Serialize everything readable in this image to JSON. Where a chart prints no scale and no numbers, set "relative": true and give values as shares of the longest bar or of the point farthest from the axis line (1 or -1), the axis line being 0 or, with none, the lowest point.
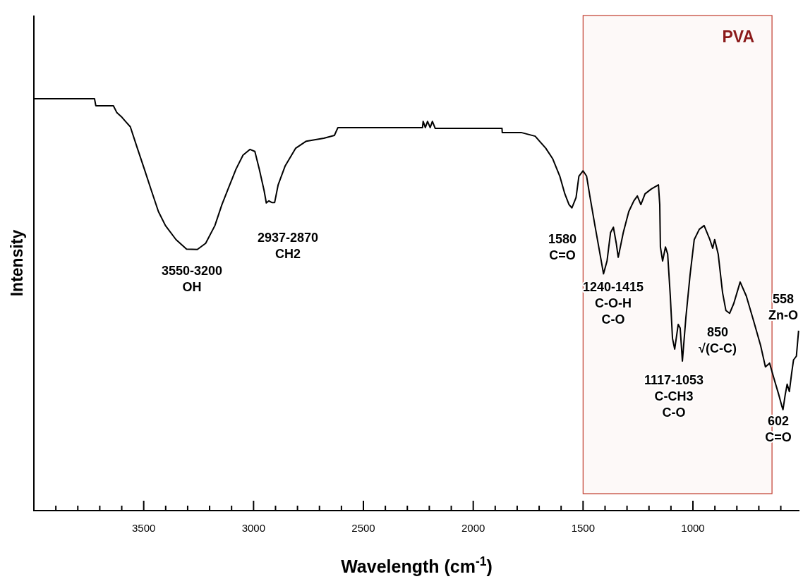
{
  "chart_data": {
    "type": "line",
    "xlabel": "Wavelength (cm$^{-1}$)",
    "ylabel": "Intensity",
    "relative": true,
    "xlim": [
      4000,
      515
    ],
    "xticks": [
      {
        "value": 3900,
        "label": null
      },
      {
        "value": 3800,
        "label": null
      },
      {
        "value": 3700,
        "label": null
      },
      {
        "value": 3600,
        "label": null
      },
      3500,
      {
        "value": 3400,
        "label": null
      },
      {
        "value": 3300,
        "label": null
      },
      {
        "value": 3200,
        "label": null
      },
      {
        "value": 3100,
        "label": null
      },
      3000,
      {
        "value": 2900,
        "label": null
      },
      {
        "value": 2800,
        "label": null
      },
      {
        "value": 2700,
        "label": null
      },
      {
        "value": 2600,
        "label": null
      },
      2500,
      {
        "value": 2400,
        "label": null
      },
      {
        "value": 2300,
        "label": null
      },
      {
        "value": 2200,
        "label": null
      },
      {
        "value": 2100,
        "label": null
      },
      2000,
      {
        "value": 1900,
        "label": null
      },
      {
        "value": 1800,
        "label": null
      },
      {
        "value": 1700,
        "label": null
      },
      {
        "value": 1600,
        "label": null
      },
      1500,
      {
        "value": 1400,
        "label": null
      },
      {
        "value": 1300,
        "label": null
      },
      {
        "value": 1200,
        "label": null
      },
      {
        "value": 1100,
        "label": null
      },
      1000,
      {
        "value": 900,
        "label": null
      },
      {
        "value": 800,
        "label": null
      },
      {
        "value": 700,
        "label": null
      },
      {
        "value": 600,
        "label": null
      }
    ],
    "grid": false,
    "marker": "none",
    "line_style": "solid",
    "series": [
      {
        "color": "#000000",
        "x": [
          4000,
          3724,
          3718,
          3638,
          3622,
          3599,
          3583,
          3561,
          3529,
          3497,
          3465,
          3433,
          3401,
          3353,
          3305,
          3256,
          3218,
          3176,
          3144,
          3112,
          3080,
          3048,
          3016,
          2994,
          2974,
          2952,
          2942,
          2930,
          2917,
          2904,
          2888,
          2856,
          2808,
          2760,
          2680,
          2632,
          2616,
          2231,
          2228,
          2218,
          2208,
          2196,
          2186,
          2173,
          1869,
          1868,
          1782,
          1718,
          1670,
          1638,
          1606,
          1583,
          1564,
          1551,
          1532,
          1519,
          1500,
          1484,
          1468,
          1446,
          1423,
          1407,
          1391,
          1375,
          1362,
          1349,
          1340,
          1317,
          1292,
          1269,
          1253,
          1237,
          1218,
          1189,
          1157,
          1151,
          1148,
          1138,
          1125,
          1115,
          1103,
          1093,
          1083,
          1067,
          1058,
          1048,
          1032,
          1013,
          994,
          971,
          949,
          923,
          910,
          901,
          885,
          865,
          850,
          833,
          814,
          785,
          757,
          724,
          692,
          670,
          651,
          628,
          609,
          596,
          590,
          580,
          571,
          561,
          551,
          542,
          529,
          519
        ],
        "values": [
          1,
          1,
          0.983,
          0.983,
          0.966,
          0.955,
          0.945,
          0.932,
          0.88,
          0.829,
          0.777,
          0.726,
          0.692,
          0.658,
          0.635,
          0.634,
          0.649,
          0.692,
          0.743,
          0.786,
          0.829,
          0.863,
          0.877,
          0.872,
          0.829,
          0.777,
          0.747,
          0.752,
          0.748,
          0.748,
          0.791,
          0.837,
          0.88,
          0.897,
          0.904,
          0.911,
          0.93,
          0.93,
          0.945,
          0.93,
          0.945,
          0.93,
          0.945,
          0.928,
          0.928,
          0.918,
          0.918,
          0.909,
          0.88,
          0.854,
          0.812,
          0.769,
          0.743,
          0.735,
          0.76,
          0.812,
          0.825,
          0.812,
          0.76,
          0.692,
          0.623,
          0.575,
          0.606,
          0.675,
          0.688,
          0.649,
          0.615,
          0.675,
          0.726,
          0.752,
          0.764,
          0.743,
          0.769,
          0.781,
          0.791,
          0.743,
          0.64,
          0.606,
          0.64,
          0.623,
          0.521,
          0.418,
          0.392,
          0.452,
          0.443,
          0.363,
          0.469,
          0.572,
          0.658,
          0.683,
          0.692,
          0.658,
          0.637,
          0.658,
          0.623,
          0.529,
          0.486,
          0.479,
          0.503,
          0.555,
          0.521,
          0.461,
          0.401,
          0.349,
          0.358,
          0.315,
          0.281,
          0.255,
          0.245,
          0.281,
          0.307,
          0.289,
          0.332,
          0.366,
          0.375,
          0.437
        ]
      }
    ],
    "bands": [
      {
        "axis": "x",
        "from": 1500,
        "to": 640,
        "label": "PVA",
        "color": "#c0392b"
      }
    ],
    "annotations": [
      "3550-3200\nOH",
      "2937-2870\nCH2",
      "1580\nC=O",
      "1240-1415\nC-O-H\nC-O",
      "1117-1053\nC-CH3\nC-O",
      "850\n√(C-C)",
      "558\nZn-O",
      "602\nC=O"
    ]
  }
}
